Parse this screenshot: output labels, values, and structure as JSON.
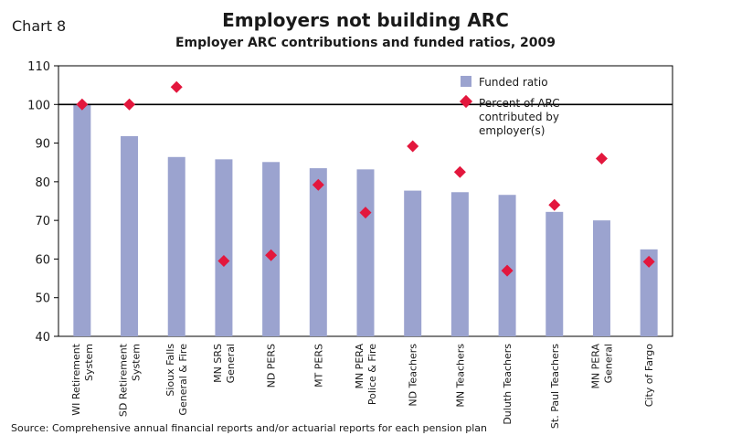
{
  "header": {
    "chart_number": "Chart 8",
    "title": "Employers not building ARC",
    "subtitle": "Employer ARC contributions and funded ratios, 2009"
  },
  "footer": {
    "source": "Source: Comprehensive annual financial reports and/or actuarial reports for each pension plan"
  },
  "colors": {
    "bar": "#9ba3cf",
    "marker": "#e3173d",
    "axis": "#000000"
  },
  "chart_data": {
    "type": "bar",
    "title": "Employers not building ARC",
    "subtitle": "Employer ARC contributions and funded ratios, 2009",
    "categories": [
      [
        "WI Retirement",
        "System"
      ],
      [
        "SD Retirement",
        "System"
      ],
      [
        "Sioux Falls",
        "General & Fire"
      ],
      [
        "MN SRS",
        "General"
      ],
      [
        "ND PERS"
      ],
      [
        "MT PERS"
      ],
      [
        "MN PERA",
        "Police & Fire"
      ],
      [
        "ND Teachers"
      ],
      [
        "MN Teachers"
      ],
      [
        "Duluth Teachers"
      ],
      [
        "St. Paul Teachers"
      ],
      [
        "MN PERA",
        "General"
      ],
      [
        "City of Fargo"
      ]
    ],
    "series": [
      {
        "name": "Funded ratio",
        "kind": "bar",
        "values": [
          100,
          91.8,
          86.4,
          85.8,
          85.1,
          83.5,
          83.2,
          77.7,
          77.3,
          76.6,
          72.2,
          70.0,
          62.5
        ]
      },
      {
        "name": "Percent of ARC contributed by employer(s)",
        "legend_lines": [
          "Percent of ARC",
          "contributed by",
          "employer(s)"
        ],
        "kind": "marker",
        "marker": "diamond",
        "values": [
          100,
          100,
          104.5,
          59.5,
          61,
          79.2,
          72,
          89.2,
          82.5,
          57,
          74,
          86,
          59.3
        ]
      }
    ],
    "ylim": [
      40,
      110
    ],
    "yticks": [
      40,
      50,
      60,
      70,
      80,
      90,
      100,
      110
    ],
    "reference_line": 100,
    "legend_position": "top-right",
    "grid": false
  }
}
